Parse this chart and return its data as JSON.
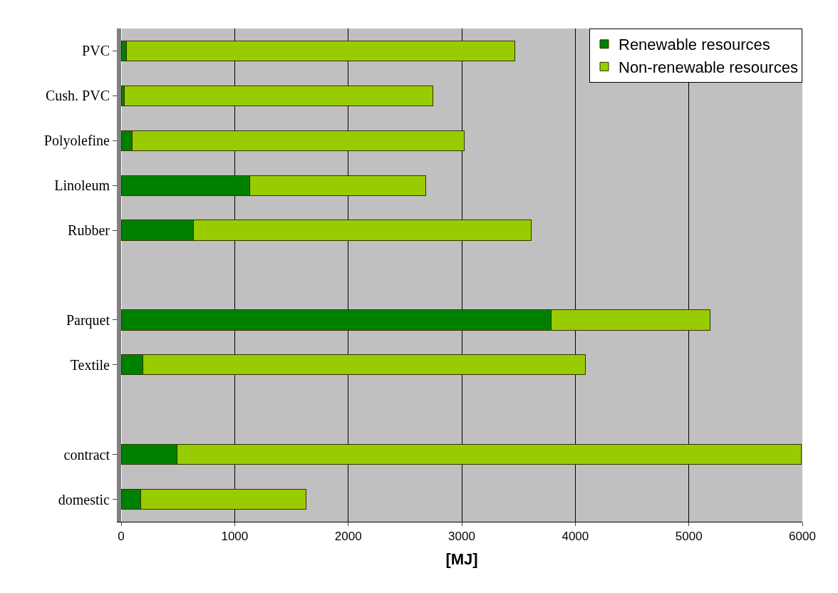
{
  "chart_data": {
    "type": "bar",
    "orientation": "horizontal",
    "stacked": true,
    "xlabel": "[MJ]",
    "categories": [
      "PVC",
      "Cush. PVC",
      "Polyolefine",
      "Linoleum",
      "Rubber",
      null,
      "Parquet",
      "Textile",
      null,
      "contract",
      "domestic"
    ],
    "series": [
      {
        "name": "Renewable resources",
        "color": "#008000",
        "values": [
          50,
          30,
          100,
          1130,
          640,
          null,
          3790,
          190,
          null,
          490,
          170
        ]
      },
      {
        "name": "Non-renewable resources",
        "color": "#99cc00",
        "values": [
          3420,
          2715,
          2920,
          1550,
          2970,
          null,
          1400,
          3900,
          null,
          5500,
          1460
        ]
      }
    ],
    "xlim": [
      0,
      6000
    ],
    "xticks": [
      0,
      1000,
      2000,
      3000,
      4000,
      5000,
      6000
    ],
    "grid": "x",
    "legend": "top right"
  }
}
